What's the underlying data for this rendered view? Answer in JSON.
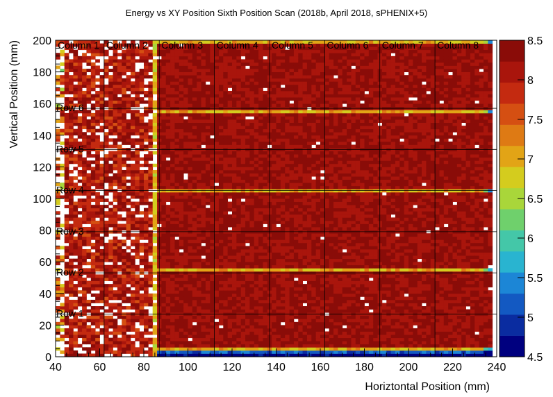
{
  "chart_data": {
    "type": "heatmap",
    "title": "Energy vs XY Position Sixth Position Scan (2018b, April 2018, sPHENIX+5)",
    "xlabel": "Horiztontal Position (mm)",
    "ylabel": "Vertical Position (mm)",
    "xlim": [
      40,
      240
    ],
    "ylim": [
      0,
      200
    ],
    "x_ticks": [
      "40",
      "60",
      "80",
      "100",
      "120",
      "140",
      "160",
      "180",
      "200",
      "220",
      "240"
    ],
    "y_ticks": [
      "0",
      "20",
      "40",
      "60",
      "80",
      "100",
      "120",
      "140",
      "160",
      "180",
      "200"
    ],
    "zlim": [
      4.5,
      8.5
    ],
    "z_ticks": [
      "4.5",
      "5",
      "5.5",
      "6",
      "6.5",
      "7",
      "7.5",
      "8",
      "8.5"
    ],
    "column_labels": [
      "Column 1",
      "Column 2",
      "Column 3",
      "Column 4",
      "Column 5",
      "Column 6",
      "Column 7",
      "Column 8"
    ],
    "row_labels": [
      "Row 1",
      "Row 2",
      "Row 3",
      "Row 4",
      "Row 5",
      "Row 6"
    ],
    "column_boundaries_x": [
      62,
      87,
      112,
      137,
      162,
      187,
      212
    ],
    "row_boundaries_y": [
      27,
      53,
      79,
      105,
      131,
      157
    ],
    "module_blocks": [
      {
        "x": [
          87,
          137
        ],
        "y": [
          6,
          53
        ]
      },
      {
        "x": [
          137,
          187
        ],
        "y": [
          6,
          53
        ]
      },
      {
        "x": [
          187,
          237
        ],
        "y": [
          6,
          53
        ]
      },
      {
        "x": [
          87,
          137
        ],
        "y": [
          56,
          103
        ]
      },
      {
        "x": [
          137,
          187
        ],
        "y": [
          56,
          103
        ]
      },
      {
        "x": [
          187,
          237
        ],
        "y": [
          56,
          103
        ]
      },
      {
        "x": [
          87,
          137
        ],
        "y": [
          106,
          153
        ]
      },
      {
        "x": [
          137,
          187
        ],
        "y": [
          106,
          153
        ]
      },
      {
        "x": [
          187,
          237
        ],
        "y": [
          106,
          153
        ]
      },
      {
        "x": [
          87,
          137
        ],
        "y": [
          156,
          198
        ]
      },
      {
        "x": [
          137,
          187
        ],
        "y": [
          156,
          198
        ]
      },
      {
        "x": [
          187,
          237
        ],
        "y": [
          156,
          198
        ]
      }
    ],
    "grid": true,
    "colormap": [
      "#00007f",
      "#0a2ca0",
      "#1359c2",
      "#1c86d6",
      "#29b4d0",
      "#44c7a8",
      "#6fd06c",
      "#a9d63a",
      "#d4cc1e",
      "#e2a416",
      "#de7a14",
      "#d54f12",
      "#c42a10",
      "#a9150c",
      "#8a0c08"
    ]
  }
}
